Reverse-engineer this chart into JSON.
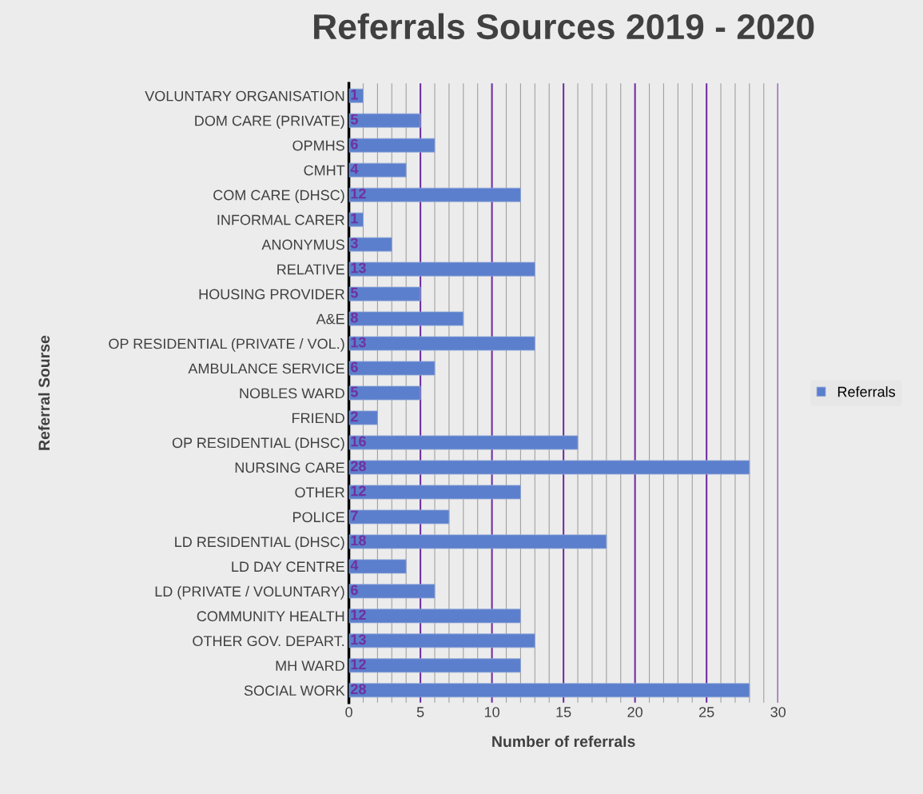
{
  "chart_data": {
    "type": "bar",
    "orientation": "horizontal",
    "title": "Referrals Sources 2019 - 2020",
    "xlabel": "Number of referrals",
    "ylabel": "Referral Sourse",
    "categories": [
      "VOLUNTARY ORGANISATION",
      "DOM CARE (PRIVATE)",
      "OPMHS",
      "CMHT",
      "COM CARE (DHSC)",
      "INFORMAL CARER",
      "ANONYMUS",
      "RELATIVE",
      "HOUSING PROVIDER",
      "A&E",
      "OP RESIDENTIAL (PRIVATE / VOL.)",
      "AMBULANCE SERVICE",
      "NOBLES WARD",
      "FRIEND",
      "OP RESIDENTIAL (DHSC)",
      "NURSING CARE",
      "OTHER",
      "POLICE",
      "LD RESIDENTIAL (DHSC)",
      "LD DAY CENTRE",
      "LD (PRIVATE / VOLUNTARY)",
      "COMMUNITY HEALTH",
      "OTHER GOV. DEPART.",
      "MH WARD",
      "SOCIAL WORK"
    ],
    "series": [
      {
        "name": "Referrals",
        "color": "#5b7fcc",
        "values": [
          1,
          5,
          6,
          4,
          12,
          1,
          3,
          13,
          5,
          8,
          13,
          6,
          5,
          2,
          16,
          28,
          12,
          7,
          18,
          4,
          6,
          12,
          13,
          12,
          28
        ]
      }
    ],
    "xlim": [
      0,
      30
    ],
    "xticks": [
      0,
      5,
      10,
      15,
      20,
      25,
      30
    ],
    "grid": "x",
    "legend": "right",
    "data_labels": true
  }
}
